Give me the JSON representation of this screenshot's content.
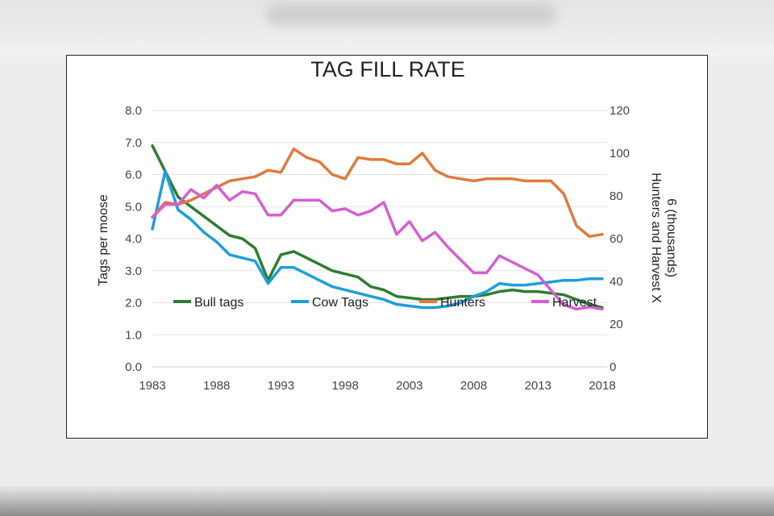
{
  "chart_data": {
    "type": "line",
    "title": "TAG FILL RATE",
    "ylabel": "Tags per moose",
    "y2label_line1": "Hunters and Harvest X",
    "y2label_line2": "6 (thousands)",
    "ylim": [
      0,
      8
    ],
    "y2lim": [
      0,
      120
    ],
    "yticks": [
      "0.0",
      "1.0",
      "2.0",
      "3.0",
      "4.0",
      "5.0",
      "6.0",
      "7.0",
      "8.0"
    ],
    "y2ticks": [
      "0",
      "20",
      "40",
      "60",
      "80",
      "100",
      "120"
    ],
    "xticks": [
      "1983",
      "1988",
      "1993",
      "1998",
      "2003",
      "2008",
      "2013",
      "2018"
    ],
    "x": [
      1983,
      1984,
      1985,
      1986,
      1987,
      1988,
      1989,
      1990,
      1991,
      1992,
      1993,
      1994,
      1995,
      1996,
      1997,
      1998,
      1999,
      2000,
      2001,
      2002,
      2003,
      2004,
      2005,
      2006,
      2007,
      2008,
      2009,
      2010,
      2011,
      2012,
      2013,
      2014,
      2015,
      2016,
      2017,
      2018
    ],
    "legend_position": "inside-bottom",
    "series": [
      {
        "name": "Bull tags",
        "axis": "left",
        "color": "#2e7d32",
        "values": [
          6.9,
          6.1,
          5.3,
          5.0,
          4.7,
          4.4,
          4.1,
          4.0,
          3.7,
          2.7,
          3.5,
          3.6,
          3.4,
          3.2,
          3.0,
          2.9,
          2.8,
          2.5,
          2.4,
          2.2,
          2.15,
          2.1,
          2.1,
          2.15,
          2.2,
          2.2,
          2.25,
          2.35,
          2.4,
          2.35,
          2.35,
          2.3,
          2.25,
          2.1,
          1.95,
          1.85
        ]
      },
      {
        "name": "Cow Tags",
        "axis": "left",
        "color": "#1e9fd8",
        "values": [
          4.3,
          6.1,
          4.9,
          4.6,
          4.2,
          3.9,
          3.5,
          3.4,
          3.3,
          2.6,
          3.1,
          3.1,
          2.9,
          2.7,
          2.5,
          2.4,
          2.3,
          2.2,
          2.1,
          1.95,
          1.9,
          1.85,
          1.85,
          1.9,
          2.0,
          2.2,
          2.35,
          2.6,
          2.55,
          2.55,
          2.6,
          2.65,
          2.7,
          2.7,
          2.75,
          2.75
        ]
      },
      {
        "name": "Hunters",
        "axis": "right",
        "color": "#e07a3c",
        "values": [
          70,
          77,
          76,
          78,
          81,
          84,
          87,
          88,
          89,
          92,
          91,
          102,
          98,
          96,
          90,
          88,
          98,
          97,
          97,
          95,
          95,
          100,
          92,
          89,
          88,
          87,
          88,
          88,
          88,
          87,
          87,
          87,
          81,
          66,
          61,
          62
        ]
      },
      {
        "name": "Harvest",
        "axis": "right",
        "color": "#d45fd0",
        "values": [
          70,
          76,
          76,
          83,
          79,
          85,
          78,
          82,
          81,
          71,
          71,
          78,
          78,
          78,
          73,
          74,
          71,
          73,
          77,
          62,
          68,
          59,
          63,
          56,
          50,
          44,
          44,
          52,
          49,
          46,
          43,
          36,
          29,
          27,
          28,
          27
        ]
      }
    ]
  }
}
